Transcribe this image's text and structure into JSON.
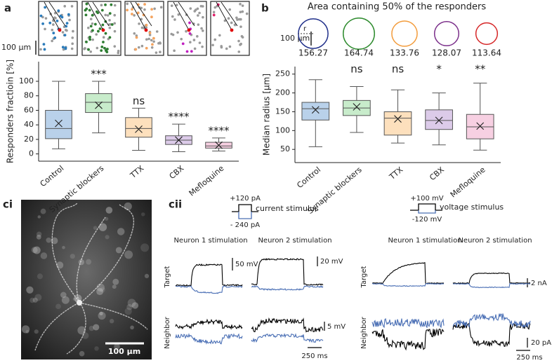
{
  "chart_data": [
    {
      "type": "box",
      "panel_label": "a",
      "scale_label": "100 µm",
      "ylabel": "Responders fractioin [%]",
      "categories": [
        "Control",
        "Synaptic blockers",
        "TTX",
        "CBX",
        "Mefloquine"
      ],
      "colors": [
        "#b9d1ea",
        "#c8eccb",
        "#fde0bd",
        "#dccbe9",
        "#f7d0e2"
      ],
      "whisker_low": [
        7,
        29,
        5,
        3,
        4
      ],
      "q1": [
        21,
        57,
        23,
        13,
        8
      ],
      "median": [
        35,
        71,
        35,
        19,
        11
      ],
      "q3": [
        60,
        83,
        50,
        25,
        16
      ],
      "whisker_high": [
        100,
        100,
        63,
        41,
        22
      ],
      "mean": [
        42,
        67,
        34,
        19,
        12
      ],
      "significance": [
        null,
        "***",
        "ns",
        "****",
        "****"
      ],
      "ylim": [
        -10,
        127
      ],
      "yticks": [
        0,
        20,
        40,
        60,
        80,
        100
      ]
    },
    {
      "type": "box",
      "panel_label": "b",
      "ylabel": "Median radius [µm]",
      "circle_title": "Area containing 50% of the responders",
      "circle_scale_label": "100 µm",
      "radius_label": "r",
      "circle_values": [
        156.27,
        164.74,
        133.76,
        128.07,
        113.64
      ],
      "circle_colors": [
        "#1f2f8a",
        "#2e8b2e",
        "#f39c3c",
        "#7b2f8a",
        "#d62728"
      ],
      "categories": [
        "Control",
        "Synaptic blockers",
        "TTX",
        "CBX",
        "Mefloquine"
      ],
      "colors": [
        "#b9d1ea",
        "#c8eccb",
        "#fde0bd",
        "#dccbe9",
        "#f7d0e2"
      ],
      "whisker_low": [
        57,
        95,
        67,
        62,
        48
      ],
      "q1": [
        128,
        140,
        88,
        103,
        78
      ],
      "median": [
        158,
        160,
        133,
        127,
        110
      ],
      "q3": [
        175,
        180,
        150,
        155,
        143
      ],
      "whisker_high": [
        235,
        217,
        208,
        200,
        226
      ],
      "mean": [
        155,
        163,
        131,
        127,
        112
      ],
      "significance": [
        null,
        "ns",
        "ns",
        "*",
        "**"
      ],
      "ylim": [
        15,
        270
      ],
      "yticks": [
        50,
        100,
        150,
        200,
        250
      ]
    }
  ],
  "panel_ci": {
    "panel_label": "ci",
    "scale_label": "100 µm"
  },
  "panel_cii": {
    "panel_label": "cii",
    "current": {
      "high": "+120 pA",
      "low": "- 240 pA",
      "label": "current stimulus"
    },
    "voltage": {
      "high": "+100 mV",
      "low": "-120 mV",
      "label": "voltage stimulus"
    },
    "columns": [
      "Neuron 1 stimulation",
      "Neuron 2 stimulation",
      "Neuron 1 stimulation",
      "Neuron 2 stimulation"
    ],
    "rows": [
      "Target",
      "Neighbor",
      "Target",
      "Neighbor"
    ],
    "scales": [
      "50 mV",
      "20 mV",
      "5 mV",
      "250 ms",
      "2 nA",
      "20 pA",
      "250 ms"
    ]
  }
}
